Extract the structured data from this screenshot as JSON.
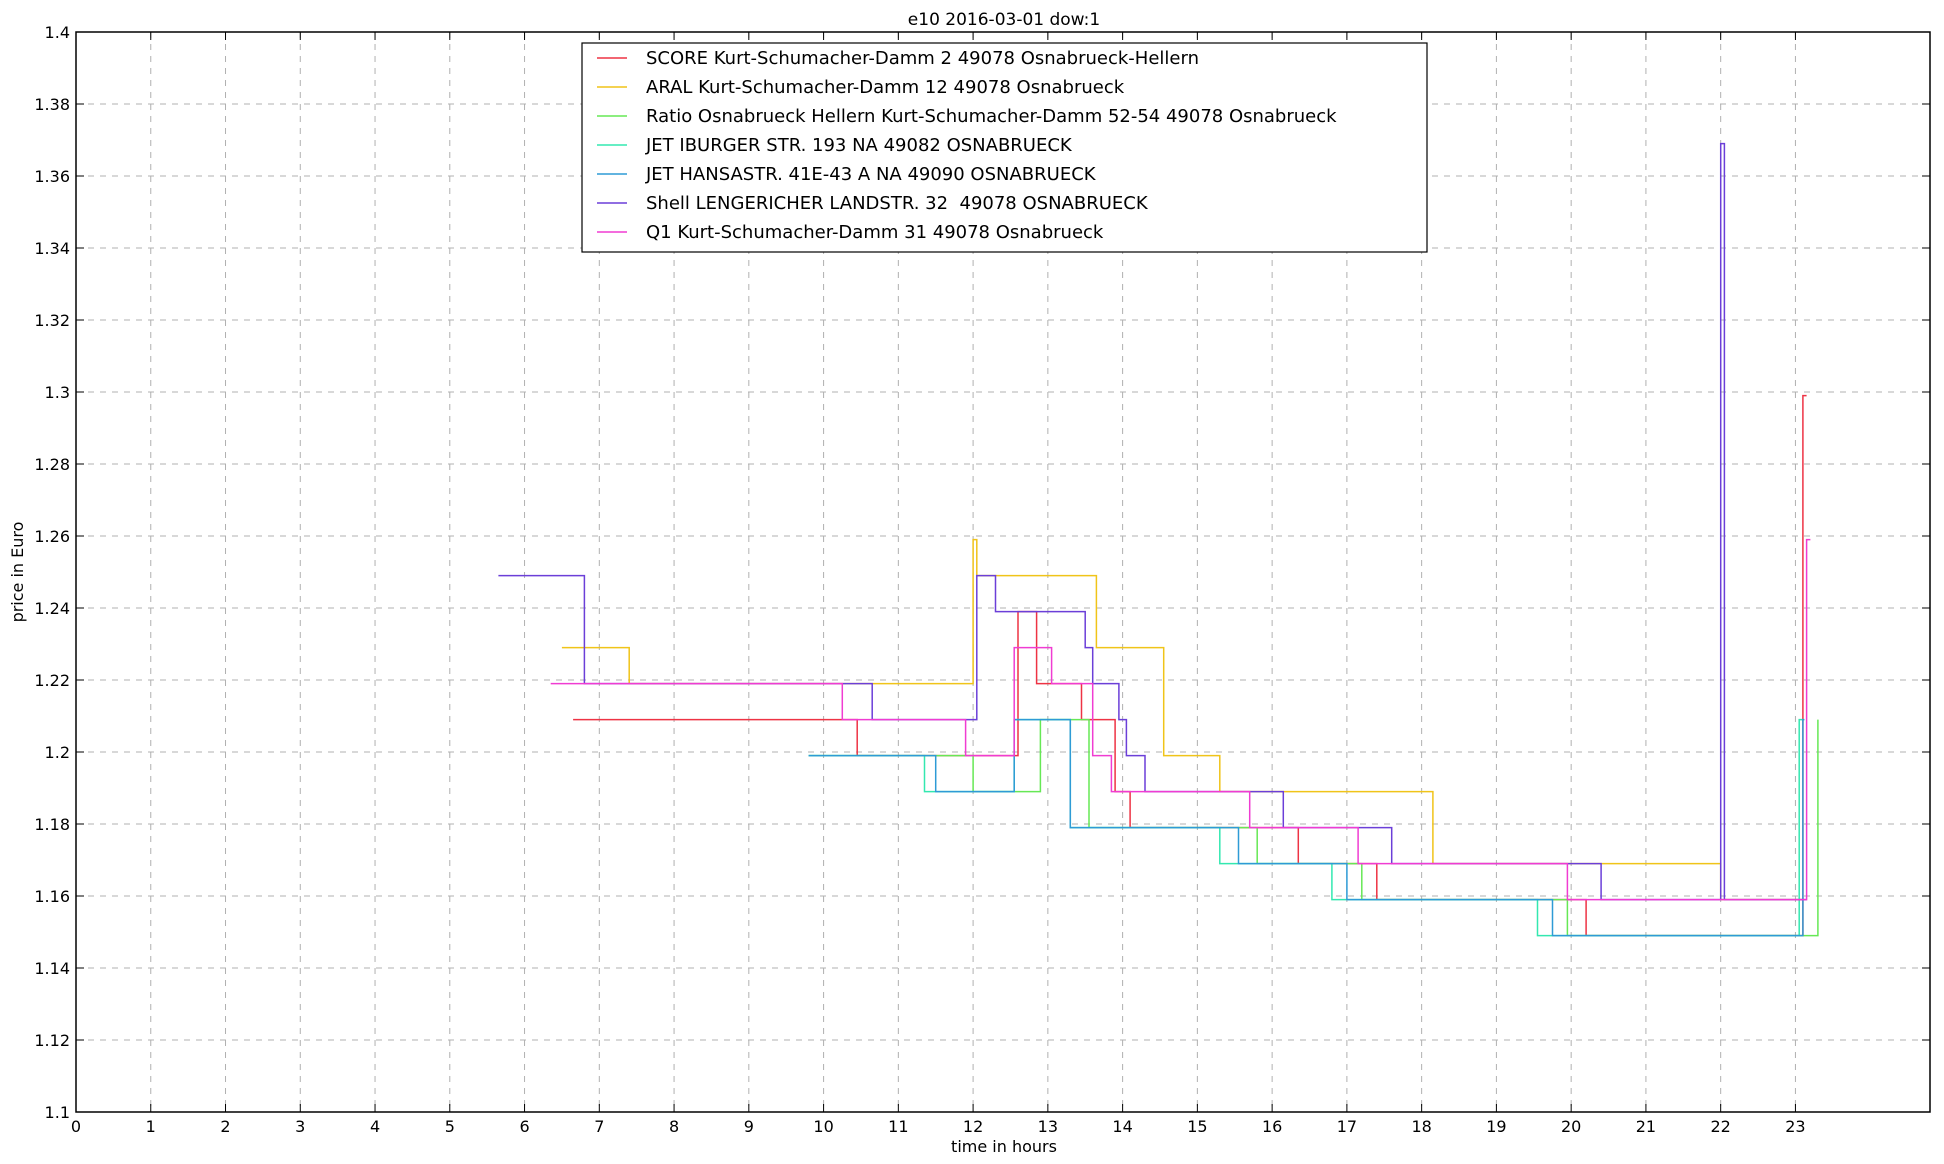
{
  "chart_data": {
    "type": "line",
    "title": "e10   2016-03-01   dow:1",
    "xlabel": "time in hours",
    "ylabel": "price in Euro",
    "xlim": [
      0,
      24.8
    ],
    "ylim": [
      1.1,
      1.4
    ],
    "x_ticks": [
      "0",
      "1",
      "2",
      "3",
      "4",
      "5",
      "6",
      "7",
      "8",
      "9",
      "10",
      "11",
      "12",
      "13",
      "14",
      "15",
      "16",
      "17",
      "18",
      "19",
      "20",
      "21",
      "22",
      "23"
    ],
    "y_ticks": [
      "1.1",
      "1.12",
      "1.14",
      "1.16",
      "1.18",
      "1.2",
      "1.22",
      "1.24",
      "1.26",
      "1.28",
      "1.3",
      "1.32",
      "1.34",
      "1.36",
      "1.38",
      "1.4"
    ],
    "grid": true,
    "legend_position": "top-center",
    "step": "post",
    "series": [
      {
        "name": "SCORE Kurt-Schumacher-Damm 2 49078 Osnabrueck-Hellern",
        "color": "#ee3344",
        "x": [
          6.65,
          10.45,
          10.45,
          12.6,
          12.6,
          12.85,
          12.85,
          13.45,
          13.45,
          13.55,
          13.55,
          13.9,
          13.9,
          14.1,
          14.1,
          16.35,
          16.35,
          17.4,
          17.4,
          20.2,
          20.2,
          23.1,
          23.1,
          23.15
        ],
        "y": [
          1.209,
          1.209,
          1.199,
          1.199,
          1.239,
          1.239,
          1.219,
          1.219,
          1.209,
          1.209,
          1.209,
          1.209,
          1.189,
          1.189,
          1.179,
          1.179,
          1.169,
          1.169,
          1.159,
          1.159,
          1.149,
          1.149,
          1.299,
          1.299
        ]
      },
      {
        "name": "ARAL Kurt-Schumacher-Damm 12 49078 Osnabrueck",
        "color": "#f0c419",
        "x": [
          6.5,
          7.4,
          7.4,
          12.0,
          12.0,
          12.05,
          12.05,
          13.65,
          13.65,
          14.55,
          14.55,
          15.3,
          15.3,
          18.15,
          18.15,
          22.0,
          22.0,
          23.1
        ],
        "y": [
          1.229,
          1.229,
          1.219,
          1.219,
          1.259,
          1.259,
          1.249,
          1.249,
          1.229,
          1.229,
          1.199,
          1.199,
          1.189,
          1.189,
          1.169,
          1.169,
          1.159,
          1.159
        ]
      },
      {
        "name": "Ratio Osnabrueck Hellern Kurt-Schumacher-Damm 52-54 49078 Osnabrueck",
        "color": "#66e855",
        "x": [
          9.8,
          12.0,
          12.0,
          12.6,
          12.6,
          12.9,
          12.9,
          13.55,
          13.55,
          15.8,
          15.8,
          17.2,
          17.2,
          19.95,
          19.95,
          23.3,
          23.3,
          23.3
        ],
        "y": [
          1.199,
          1.199,
          1.189,
          1.189,
          1.189,
          1.189,
          1.209,
          1.209,
          1.179,
          1.179,
          1.169,
          1.169,
          1.159,
          1.159,
          1.149,
          1.149,
          1.209,
          1.209
        ]
      },
      {
        "name": "JET IBURGER STR. 193 NA 49082 OSNABRUECK",
        "color": "#33e8b0",
        "x": [
          9.8,
          11.35,
          11.35,
          12.55,
          12.55,
          13.3,
          13.3,
          15.3,
          15.3,
          16.8,
          16.8,
          19.55,
          19.55,
          23.05,
          23.05,
          23.1
        ],
        "y": [
          1.199,
          1.199,
          1.189,
          1.189,
          1.209,
          1.209,
          1.179,
          1.179,
          1.169,
          1.169,
          1.159,
          1.159,
          1.149,
          1.149,
          1.209,
          1.209
        ]
      },
      {
        "name": "JET HANSASTR. 41E-43 A NA 49090 OSNABRUECK",
        "color": "#2e9bd6",
        "x": [
          9.8,
          11.5,
          11.5,
          12.55,
          12.55,
          13.3,
          13.3,
          15.55,
          15.55,
          17.0,
          17.0,
          19.75,
          19.75,
          23.1,
          23.1,
          23.12
        ],
        "y": [
          1.199,
          1.199,
          1.189,
          1.189,
          1.209,
          1.209,
          1.179,
          1.179,
          1.169,
          1.169,
          1.159,
          1.159,
          1.149,
          1.149,
          1.209,
          1.209
        ]
      },
      {
        "name": "Shell LENGERICHER LANDSTR. 32  49078 OSNABRUECK",
        "color": "#6b3fd8",
        "x": [
          5.65,
          6.8,
          6.8,
          10.65,
          10.65,
          12.05,
          12.05,
          12.3,
          12.3,
          13.5,
          13.5,
          13.6,
          13.6,
          13.95,
          13.95,
          14.05,
          14.05,
          14.3,
          14.3,
          16.15,
          16.15,
          17.6,
          17.6,
          20.4,
          20.4,
          22.0,
          22.0,
          22.05,
          22.05,
          23.15
        ],
        "y": [
          1.249,
          1.249,
          1.219,
          1.219,
          1.209,
          1.209,
          1.249,
          1.249,
          1.239,
          1.239,
          1.229,
          1.229,
          1.219,
          1.219,
          1.209,
          1.209,
          1.199,
          1.199,
          1.189,
          1.189,
          1.179,
          1.179,
          1.169,
          1.169,
          1.159,
          1.159,
          1.369,
          1.369,
          1.159,
          1.159
        ]
      },
      {
        "name": "Q1 Kurt-Schumacher-Damm 31 49078 Osnabrueck",
        "color": "#f03cd2",
        "x": [
          6.35,
          10.25,
          10.25,
          11.9,
          11.9,
          12.55,
          12.55,
          13.05,
          13.05,
          13.6,
          13.6,
          13.85,
          13.85,
          15.7,
          15.7,
          17.15,
          17.15,
          19.95,
          19.95,
          23.15,
          23.15,
          23.2
        ],
        "y": [
          1.219,
          1.219,
          1.209,
          1.209,
          1.199,
          1.199,
          1.229,
          1.229,
          1.219,
          1.219,
          1.199,
          1.199,
          1.189,
          1.189,
          1.179,
          1.179,
          1.169,
          1.169,
          1.159,
          1.159,
          1.259,
          1.259
        ]
      }
    ]
  }
}
